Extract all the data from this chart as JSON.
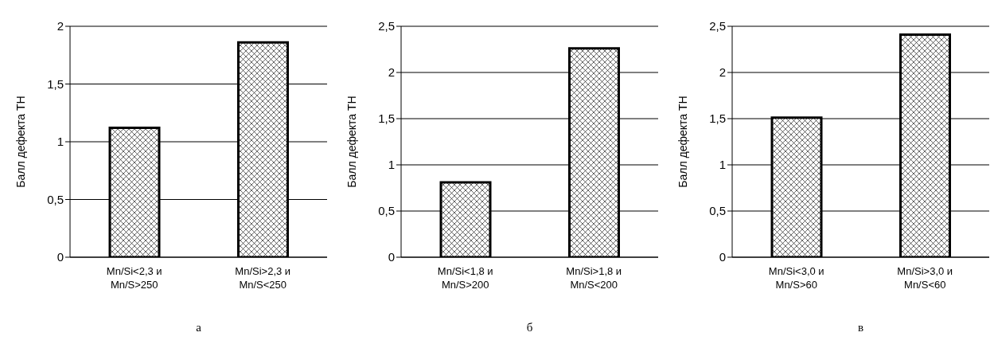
{
  "chart_data": [
    {
      "type": "bar",
      "xlabel": "а",
      "ylabel": "Балл дефекта ТН",
      "categories": [
        "Mn/Si<2,3 и Mn/S>250",
        "Mn/Si>2,3 и Mn/S<250"
      ],
      "values": [
        1.12,
        1.86
      ],
      "color": "#000000",
      "ylim": [
        0,
        2
      ],
      "yticks": [
        0,
        {
          "value": 0.5,
          "label": "0,5"
        },
        1,
        {
          "value": 1.5,
          "label": "1,5"
        },
        2
      ],
      "grid": "y"
    },
    {
      "type": "bar",
      "xlabel": "б",
      "ylabel": "Балл дефекта ТН",
      "categories": [
        "Mn/Si<1,8 и Mn/S>200",
        "Mn/Si>1,8 и Mn/S<200"
      ],
      "values": [
        0.81,
        2.26
      ],
      "color": "#000000",
      "ylim": [
        0,
        2.5
      ],
      "yticks": [
        0,
        {
          "value": 0.5,
          "label": "0,5"
        },
        1,
        {
          "value": 1.5,
          "label": "1,5"
        },
        2,
        {
          "value": 2.5,
          "label": "2,5"
        }
      ],
      "grid": "y"
    },
    {
      "type": "bar",
      "xlabel": "в",
      "ylabel": "Балл дефекта ТН",
      "categories": [
        "Mn/Si<3,0 и Mn/S>60",
        "Mn/Si>3,0 и Mn/S<60"
      ],
      "values": [
        1.51,
        2.41
      ],
      "color": "#000000",
      "ylim": [
        0,
        2.5
      ],
      "yticks": [
        0,
        {
          "value": 0.5,
          "label": "0,5"
        },
        1,
        {
          "value": 1.5,
          "label": "1,5"
        },
        2,
        {
          "value": 2.5,
          "label": "2,5"
        }
      ],
      "grid": "y"
    }
  ]
}
